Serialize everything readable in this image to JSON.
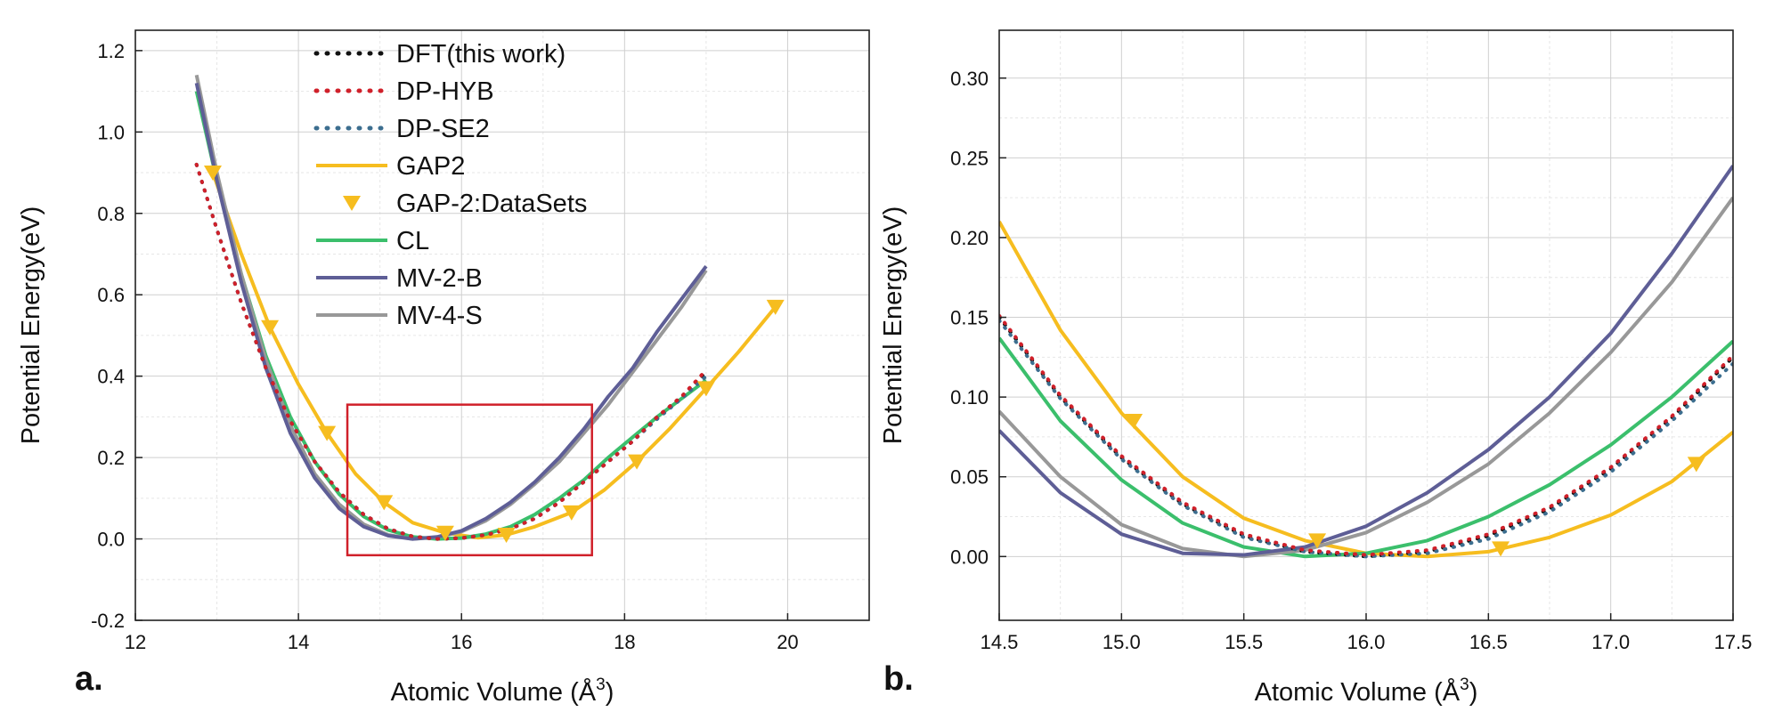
{
  "figure": {
    "panel_labels": [
      "a.",
      "b."
    ]
  },
  "chart_data": [
    {
      "type": "line",
      "panel": "a.",
      "xlabel": "Atomic Volume (Å",
      "xlabel_sup": "3",
      "xlabel_close": ")",
      "ylabel": "Potential Energy(eV)",
      "xlim": [
        12,
        21
      ],
      "ylim": [
        -0.2,
        1.25
      ],
      "xticks": [
        12,
        14,
        16,
        18,
        20
      ],
      "xtick_labels": [
        "12",
        "14",
        "16",
        "18",
        "20"
      ],
      "yticks": [
        -0.2,
        0.0,
        0.2,
        0.4,
        0.6,
        0.8,
        1.0,
        1.2
      ],
      "ytick_labels": [
        "-0.2",
        "0.0",
        "0.2",
        "0.4",
        "0.6",
        "0.8",
        "1.0",
        "1.2"
      ],
      "grid": true,
      "legend_position": "top-center",
      "legend": [
        {
          "label": "DFT(this work)",
          "style": "dotted",
          "color": "#111111"
        },
        {
          "label": "DP-HYB",
          "style": "dotted",
          "color": "#d0202a"
        },
        {
          "label": "DP-SE2",
          "style": "dotted",
          "color": "#3c6e8f"
        },
        {
          "label": "GAP2",
          "style": "solid",
          "color": "#f6bd1f"
        },
        {
          "label": "GAP-2:DataSets",
          "style": "marker",
          "color": "#f6bd1f"
        },
        {
          "label": "CL",
          "style": "solid",
          "color": "#3bbf6c"
        },
        {
          "label": "MV-2-B",
          "style": "solid",
          "color": "#5e5e96"
        },
        {
          "label": "MV-4-S",
          "style": "solid",
          "color": "#989898"
        }
      ],
      "highlight_box": {
        "x": [
          14.6,
          17.6
        ],
        "y": [
          -0.04,
          0.33
        ],
        "color": "#d0202a"
      },
      "series": [
        {
          "name": "DFT(this work)",
          "x": [
            12.75,
            13.0,
            13.3,
            13.6,
            13.9,
            14.2,
            14.5,
            14.8,
            15.1,
            15.4,
            15.7,
            16.0,
            16.3,
            16.6,
            16.9,
            17.2,
            17.5,
            17.8,
            18.1,
            18.4,
            18.7,
            19.0
          ],
          "y": [
            0.92,
            0.76,
            0.58,
            0.42,
            0.29,
            0.19,
            0.115,
            0.06,
            0.025,
            0.006,
            0.0,
            0.002,
            0.01,
            0.025,
            0.05,
            0.09,
            0.14,
            0.19,
            0.24,
            0.3,
            0.35,
            0.41
          ]
        },
        {
          "name": "DP-HYB",
          "x": [
            12.75,
            13.0,
            13.3,
            13.6,
            13.9,
            14.2,
            14.5,
            14.8,
            15.1,
            15.4,
            15.7,
            16.0,
            16.3,
            16.6,
            16.9,
            17.2,
            17.5,
            17.8,
            18.1,
            18.4,
            18.7,
            19.0
          ],
          "y": [
            0.92,
            0.76,
            0.58,
            0.42,
            0.29,
            0.19,
            0.115,
            0.06,
            0.025,
            0.006,
            0.0,
            0.002,
            0.01,
            0.025,
            0.05,
            0.09,
            0.14,
            0.19,
            0.24,
            0.3,
            0.35,
            0.415
          ]
        },
        {
          "name": "DP-SE2",
          "x": [
            12.75,
            13.0,
            13.3,
            13.6,
            13.9,
            14.2,
            14.5,
            14.8,
            15.1,
            15.4,
            15.7,
            16.0,
            16.3,
            16.6,
            16.9,
            17.2,
            17.5,
            17.8,
            18.1,
            18.4,
            18.7,
            19.0
          ],
          "y": [
            0.92,
            0.76,
            0.58,
            0.42,
            0.29,
            0.19,
            0.115,
            0.06,
            0.025,
            0.006,
            0.0,
            0.002,
            0.01,
            0.025,
            0.05,
            0.09,
            0.14,
            0.19,
            0.24,
            0.295,
            0.345,
            0.4
          ]
        },
        {
          "name": "GAP2",
          "x": [
            12.95,
            13.3,
            13.65,
            14.0,
            14.35,
            14.7,
            15.05,
            15.4,
            15.8,
            16.2,
            16.55,
            16.9,
            17.35,
            17.75,
            18.15,
            18.55,
            19.0,
            19.4,
            19.85
          ],
          "y": [
            0.9,
            0.7,
            0.52,
            0.38,
            0.26,
            0.16,
            0.09,
            0.04,
            0.015,
            0.003,
            0.01,
            0.03,
            0.065,
            0.12,
            0.19,
            0.27,
            0.37,
            0.46,
            0.57
          ]
        },
        {
          "name": "GAP-2:DataSets",
          "x": [
            12.95,
            13.65,
            14.35,
            15.05,
            15.8,
            16.55,
            17.35,
            18.15,
            19.0,
            19.85
          ],
          "y": [
            0.9,
            0.52,
            0.26,
            0.09,
            0.015,
            0.01,
            0.065,
            0.19,
            0.37,
            0.57
          ]
        },
        {
          "name": "CL",
          "x": [
            12.75,
            13.0,
            13.3,
            13.6,
            13.9,
            14.2,
            14.5,
            14.8,
            15.1,
            15.4,
            15.7,
            16.0,
            16.3,
            16.6,
            16.9,
            17.2,
            17.5,
            17.8,
            18.1,
            18.4,
            18.7,
            19.0
          ],
          "y": [
            1.1,
            0.88,
            0.65,
            0.45,
            0.3,
            0.19,
            0.11,
            0.055,
            0.022,
            0.005,
            0.0,
            0.002,
            0.012,
            0.03,
            0.06,
            0.1,
            0.145,
            0.2,
            0.25,
            0.3,
            0.345,
            0.39
          ]
        },
        {
          "name": "MV-2-B",
          "x": [
            12.75,
            13.0,
            13.3,
            13.6,
            13.9,
            14.2,
            14.5,
            14.8,
            15.1,
            15.4,
            15.7,
            16.0,
            16.3,
            16.6,
            16.9,
            17.2,
            17.5,
            17.8,
            18.1,
            18.4,
            18.7,
            19.0
          ],
          "y": [
            1.12,
            0.88,
            0.63,
            0.42,
            0.26,
            0.15,
            0.075,
            0.03,
            0.008,
            0.0,
            0.005,
            0.02,
            0.05,
            0.09,
            0.14,
            0.2,
            0.27,
            0.35,
            0.42,
            0.51,
            0.59,
            0.67
          ]
        },
        {
          "name": "MV-4-S",
          "x": [
            12.75,
            13.0,
            13.3,
            13.6,
            13.9,
            14.2,
            14.5,
            14.8,
            15.1,
            15.4,
            15.7,
            16.0,
            16.3,
            16.6,
            16.9,
            17.2,
            17.5,
            17.8,
            18.1,
            18.4,
            18.7,
            19.0
          ],
          "y": [
            1.14,
            0.9,
            0.65,
            0.44,
            0.28,
            0.16,
            0.085,
            0.036,
            0.01,
            0.0,
            0.004,
            0.018,
            0.045,
            0.085,
            0.135,
            0.19,
            0.26,
            0.33,
            0.41,
            0.49,
            0.57,
            0.66
          ]
        }
      ]
    },
    {
      "type": "line",
      "panel": "b.",
      "xlabel": "Atomic Volume (Å",
      "xlabel_sup": "3",
      "xlabel_close": ")",
      "ylabel": "Potential Energy(eV)",
      "xlim": [
        14.5,
        17.5
      ],
      "ylim": [
        -0.04,
        0.33
      ],
      "xticks": [
        14.5,
        15.0,
        15.5,
        16.0,
        16.5,
        17.0,
        17.5
      ],
      "xtick_labels": [
        "14.5",
        "15.0",
        "15.5",
        "16.0",
        "16.5",
        "17.0",
        "17.5"
      ],
      "yticks": [
        0.0,
        0.05,
        0.1,
        0.15,
        0.2,
        0.25,
        0.3
      ],
      "ytick_labels": [
        "0.00",
        "0.05",
        "0.10",
        "0.15",
        "0.20",
        "0.25",
        "0.30"
      ],
      "grid": true,
      "series": [
        {
          "name": "DFT(this work)",
          "x": [
            14.5,
            14.75,
            15.0,
            15.25,
            15.5,
            15.75,
            16.0,
            16.25,
            16.5,
            16.75,
            17.0,
            17.25,
            17.5
          ],
          "y": [
            0.15,
            0.1,
            0.062,
            0.033,
            0.013,
            0.003,
            0.0,
            0.003,
            0.013,
            0.03,
            0.055,
            0.087,
            0.125
          ]
        },
        {
          "name": "DP-HYB",
          "x": [
            14.5,
            14.75,
            15.0,
            15.25,
            15.5,
            15.75,
            16.0,
            16.25,
            16.5,
            16.75,
            17.0,
            17.25,
            17.5
          ],
          "y": [
            0.151,
            0.101,
            0.063,
            0.034,
            0.014,
            0.004,
            0.001,
            0.004,
            0.014,
            0.031,
            0.056,
            0.088,
            0.126
          ]
        },
        {
          "name": "DP-SE2",
          "x": [
            14.5,
            14.75,
            15.0,
            15.25,
            15.5,
            15.75,
            16.0,
            16.25,
            16.5,
            16.75,
            17.0,
            17.25,
            17.5
          ],
          "y": [
            0.148,
            0.099,
            0.061,
            0.032,
            0.012,
            0.003,
            0.0,
            0.002,
            0.011,
            0.028,
            0.053,
            0.085,
            0.121
          ]
        },
        {
          "name": "GAP2",
          "x": [
            14.5,
            14.75,
            15.0,
            15.25,
            15.5,
            15.75,
            16.0,
            16.25,
            16.5,
            16.75,
            17.0,
            17.25,
            17.5
          ],
          "y": [
            0.21,
            0.142,
            0.09,
            0.05,
            0.024,
            0.01,
            0.002,
            0.0,
            0.003,
            0.012,
            0.026,
            0.047,
            0.078
          ]
        },
        {
          "name": "GAP-2:DataSets",
          "x": [
            15.05,
            15.8,
            16.55,
            17.35
          ],
          "y": [
            0.085,
            0.01,
            0.005,
            0.058
          ]
        },
        {
          "name": "CL",
          "x": [
            14.5,
            14.75,
            15.0,
            15.25,
            15.5,
            15.75,
            16.0,
            16.25,
            16.5,
            16.75,
            17.0,
            17.25,
            17.5
          ],
          "y": [
            0.137,
            0.085,
            0.048,
            0.021,
            0.006,
            0.0,
            0.002,
            0.01,
            0.025,
            0.045,
            0.07,
            0.1,
            0.135
          ]
        },
        {
          "name": "MV-2-B",
          "x": [
            14.5,
            14.75,
            15.0,
            15.25,
            15.5,
            15.75,
            16.0,
            16.25,
            16.5,
            16.75,
            17.0,
            17.25,
            17.5
          ],
          "y": [
            0.079,
            0.04,
            0.014,
            0.002,
            0.001,
            0.006,
            0.019,
            0.04,
            0.067,
            0.1,
            0.14,
            0.19,
            0.245
          ]
        },
        {
          "name": "MV-4-S",
          "x": [
            14.5,
            14.75,
            15.0,
            15.25,
            15.5,
            15.75,
            16.0,
            16.25,
            16.5,
            16.75,
            17.0,
            17.25,
            17.5
          ],
          "y": [
            0.091,
            0.05,
            0.02,
            0.005,
            0.0,
            0.004,
            0.015,
            0.034,
            0.058,
            0.09,
            0.128,
            0.172,
            0.225
          ]
        }
      ]
    }
  ]
}
